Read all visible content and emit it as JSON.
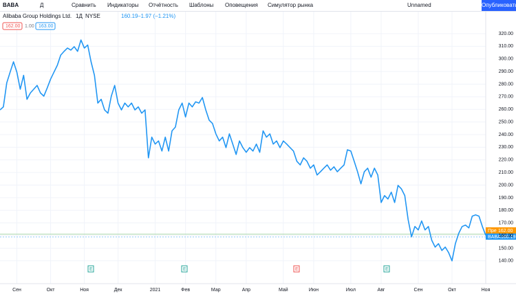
{
  "toolbar": {
    "symbol": "BABA",
    "interval": "Д",
    "compare": "Сравнить",
    "indicators": "Индикаторы",
    "reports": "Отчётность",
    "templates": "Шаблоны",
    "alerts": "Оповещения",
    "simulator": "Симулятор рынка",
    "layout": "Unnamed",
    "publish": "Опубликовать"
  },
  "legend": {
    "name": "Alibaba Group Holdings Ltd.",
    "interval": "1Д",
    "exchange": "NYSE",
    "price": "160.19",
    "change": "−1.97 (−1.21%)",
    "bid": "162.00",
    "spread": "1.00",
    "ask": "163.00",
    "pre_tag": "Пре",
    "symbol_tag": "BABA"
  },
  "events": [
    "E",
    "E",
    "E",
    "E"
  ],
  "chart_data": {
    "type": "line",
    "series": [
      {
        "name": "BABA",
        "color": "#2196f3",
        "values": [
          259.6,
          262,
          281,
          289.5,
          297.7,
          289.5,
          276,
          287,
          268,
          273,
          276,
          279,
          273,
          270.5,
          277,
          284,
          289.5,
          295,
          303,
          306,
          308.6,
          307,
          309.7,
          306,
          315,
          308.6,
          311,
          297.7,
          287,
          265,
          268,
          259.6,
          257,
          270.5,
          279,
          265,
          259.6,
          265,
          262,
          265,
          259.6,
          262,
          257,
          259.6,
          221.6,
          238,
          232.5,
          235,
          227,
          238,
          227,
          243,
          246,
          259.6,
          265,
          254,
          265,
          262,
          266,
          265,
          269.4,
          259.6,
          251.5,
          248.8,
          240.6,
          235,
          238,
          229.7,
          240.6,
          232.5,
          224.3,
          235,
          229.7,
          226,
          229.7,
          227,
          232.5,
          226,
          243,
          238,
          240.6,
          232.5,
          235,
          229.7,
          235,
          232.5,
          229.7,
          227,
          218.9,
          216,
          221.6,
          218.9,
          213.4,
          216,
          208,
          210.6,
          213.4,
          216,
          211.8,
          214.5,
          210.6,
          213.4,
          216,
          228,
          227,
          218.9,
          210.6,
          201,
          210.6,
          213.4,
          206.3,
          213.4,
          208,
          186.2,
          191.7,
          189,
          194.4,
          186.2,
          199.8,
          197,
          191.7,
          172.6,
          159,
          167.2,
          164.5,
          171.6,
          164.5,
          167.2,
          156.3,
          150.9,
          153.6,
          148.2,
          150.9,
          146.5,
          140,
          153.6,
          161.8,
          167.2,
          168.3,
          166.1,
          175.4,
          176.4,
          175.4,
          167.2,
          160.19
        ]
      }
    ],
    "xlim": [
      0,
      144
    ],
    "xticks": [
      {
        "value": 5,
        "label": "Сен"
      },
      {
        "value": 15,
        "label": "Окт"
      },
      {
        "value": 25,
        "label": "Ноя"
      },
      {
        "value": 35,
        "label": "Дек"
      },
      {
        "value": 46,
        "label": "2021"
      },
      {
        "value": 55,
        "label": "Фев"
      },
      {
        "value": 64,
        "label": "Мар"
      },
      {
        "value": 73,
        "label": "Апр"
      },
      {
        "value": 84,
        "label": "Май"
      },
      {
        "value": 93,
        "label": "Июн"
      },
      {
        "value": 104,
        "label": "Июл"
      },
      {
        "value": 113,
        "label": "Авг"
      },
      {
        "value": 124,
        "label": "Сен"
      },
      {
        "value": 134,
        "label": "Окт"
      },
      {
        "value": 144,
        "label": "Ноя"
      }
    ],
    "ylim": [
      129,
      326
    ],
    "yticks": [
      {
        "value": 140,
        "label": "140.00"
      },
      {
        "value": 150,
        "label": "150.00"
      },
      {
        "value": 160,
        "label": "160.00"
      },
      {
        "value": 170,
        "label": "170.00"
      },
      {
        "value": 180,
        "label": "180.00"
      },
      {
        "value": 190,
        "label": "190.00"
      },
      {
        "value": 200,
        "label": "200.00"
      },
      {
        "value": 210,
        "label": "210.00"
      },
      {
        "value": 220,
        "label": "220.00"
      },
      {
        "value": 230,
        "label": "230.00"
      },
      {
        "value": 240,
        "label": "240.00"
      },
      {
        "value": 250,
        "label": "250.00"
      },
      {
        "value": 260,
        "label": "260.00"
      },
      {
        "value": 270,
        "label": "270.00"
      },
      {
        "value": 280,
        "label": "280.00"
      },
      {
        "value": 290,
        "label": "290.00"
      },
      {
        "value": 300,
        "label": "300.00"
      },
      {
        "value": 310,
        "label": "310.00"
      },
      {
        "value": 320,
        "label": "320.00"
      }
    ],
    "grid": true
  }
}
